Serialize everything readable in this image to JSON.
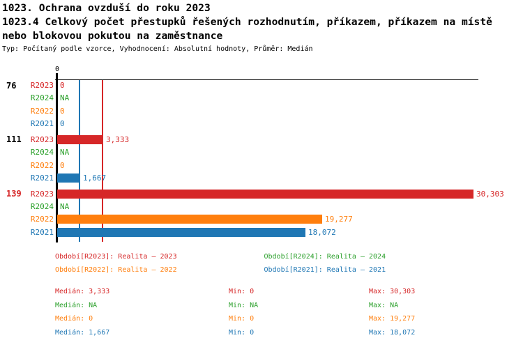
{
  "header": {
    "title": "1023. Ochrana ovzduší do roku 2023",
    "subtitle_line1": "1023.4 Celkový počet přestupků řešených rozhodnutím, příkazem, příkazem na místě",
    "subtitle_line2": "nebo blokovou pokutou na zaměstnance",
    "meta": "Typ: Počítaný podle vzorce, Vyhodnocení: Absolutní hodnoty, Průměr: Medián"
  },
  "colors": {
    "axis": "#000000",
    "text": "#000000",
    "highlighted_group_label": "#d62728",
    "series": {
      "R2023": "#d62728",
      "R2024": "#2ca02c",
      "R2022": "#ff7f0e",
      "R2021": "#1f77b4"
    }
  },
  "chart_data": {
    "type": "bar",
    "orientation": "horizontal",
    "axis": {
      "tick_label": "0",
      "min": 0,
      "max": 30303,
      "grid": false
    },
    "series_order": [
      "R2023",
      "R2024",
      "R2022",
      "R2021"
    ],
    "groups": [
      {
        "label": "76",
        "highlighted": false,
        "bars": [
          {
            "series": "R2023",
            "value": 0,
            "text": "0"
          },
          {
            "series": "R2024",
            "value": null,
            "text": "NA"
          },
          {
            "series": "R2022",
            "value": 0,
            "text": "0"
          },
          {
            "series": "R2021",
            "value": 0,
            "text": "0"
          }
        ]
      },
      {
        "label": "111",
        "highlighted": false,
        "bars": [
          {
            "series": "R2023",
            "value": 3333,
            "text": "3,333"
          },
          {
            "series": "R2024",
            "value": null,
            "text": "NA"
          },
          {
            "series": "R2022",
            "value": 0,
            "text": "0"
          },
          {
            "series": "R2021",
            "value": 1667,
            "text": "1,667"
          }
        ]
      },
      {
        "label": "139",
        "highlighted": true,
        "bars": [
          {
            "series": "R2023",
            "value": 30303,
            "text": "30,303"
          },
          {
            "series": "R2024",
            "value": null,
            "text": "NA"
          },
          {
            "series": "R2022",
            "value": 19277,
            "text": "19,277"
          },
          {
            "series": "R2021",
            "value": 18072,
            "text": "18,072"
          }
        ]
      }
    ],
    "median_lines": [
      {
        "series": "R2021",
        "value": 1667
      },
      {
        "series": "R2023",
        "value": 3333
      }
    ]
  },
  "legend": {
    "items": [
      {
        "series": "R2023",
        "label": "Období[R2023]: Realita – 2023"
      },
      {
        "series": "R2024",
        "label": "Období[R2024]: Realita – 2024"
      },
      {
        "series": "R2022",
        "label": "Období[R2022]: Realita – 2022"
      },
      {
        "series": "R2021",
        "label": "Období[R2021]: Realita – 2021"
      }
    ]
  },
  "stats": {
    "rows": [
      {
        "series": "R2023",
        "median": "Medián: 3,333",
        "min": "Min: 0",
        "max": "Max: 30,303"
      },
      {
        "series": "R2024",
        "median": "Medián: NA",
        "min": "Min: NA",
        "max": "Max: NA"
      },
      {
        "series": "R2022",
        "median": "Medián: 0",
        "min": "Min: 0",
        "max": "Max: 19,277"
      },
      {
        "series": "R2021",
        "median": "Medián: 1,667",
        "min": "Min: 0",
        "max": "Max: 18,072"
      }
    ]
  }
}
